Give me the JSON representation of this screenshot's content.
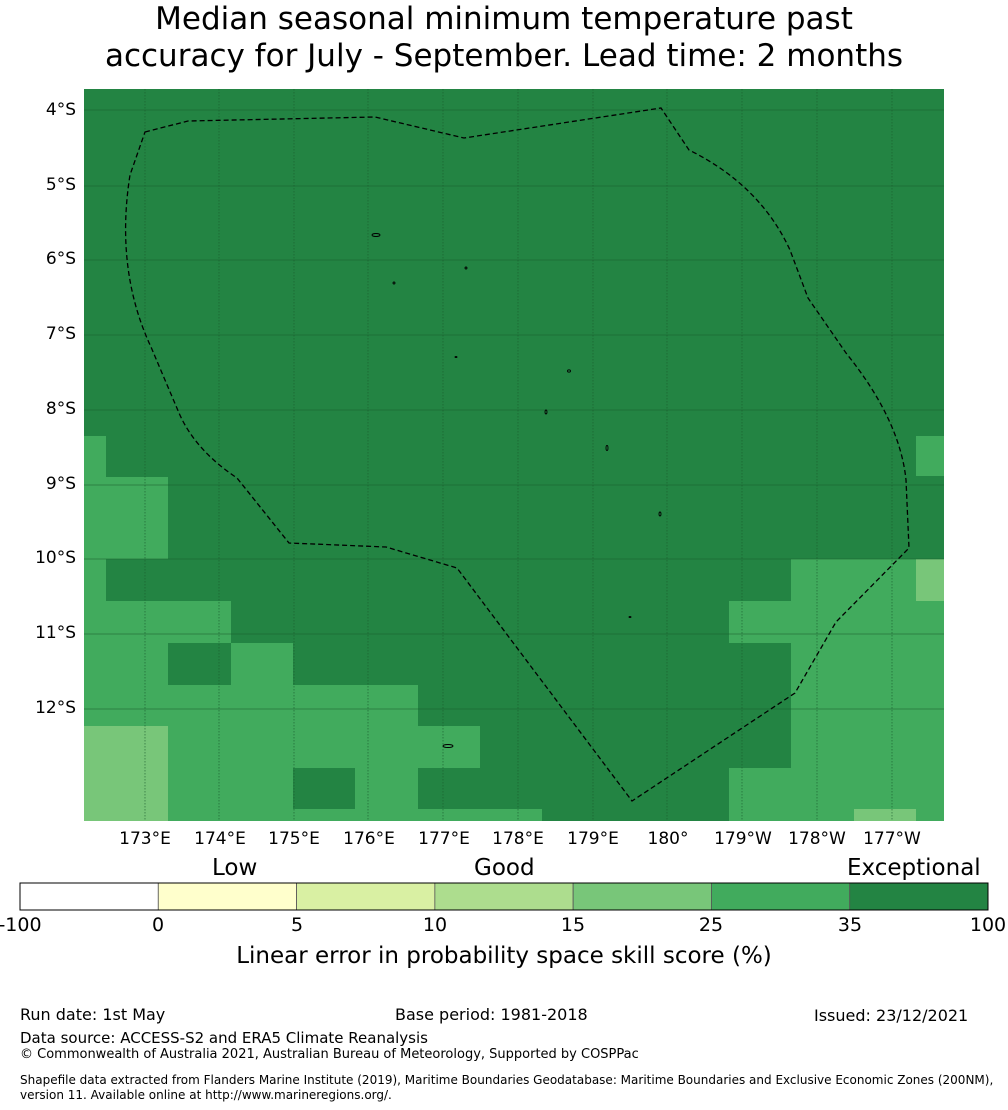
{
  "title": {
    "line1": "Median seasonal minimum temperature past",
    "line2": "accuracy for July - September. Lead time: 2 months"
  },
  "map": {
    "lat_labels": [
      "4°S",
      "5°S",
      "6°S",
      "7°S",
      "8°S",
      "9°S",
      "10°S",
      "11°S",
      "12°S"
    ],
    "lon_labels": [
      "173°E",
      "174°E",
      "175°E",
      "176°E",
      "177°E",
      "178°E",
      "179°E",
      "180°",
      "179°W",
      "178°W",
      "177°W"
    ],
    "extent": {
      "lon_min": 172.2,
      "lon_max": 183.7,
      "lat_min": -13.2,
      "lat_max": -3.75
    },
    "boundary_line_style": "dashed",
    "grid": true,
    "colors": {
      "exceptional": "#238443",
      "band_25_35": "#41ab5d",
      "band_15_25": "#78c679"
    }
  },
  "colorbar": {
    "categories": [
      "Low",
      "Good",
      "Exceptional"
    ],
    "ticks": [
      "-100",
      "0",
      "5",
      "10",
      "15",
      "25",
      "35",
      "100"
    ],
    "colors": [
      "#ffffff",
      "#ffffcc",
      "#d9f0a3",
      "#addd8e",
      "#78c679",
      "#41ab5d",
      "#238443"
    ],
    "label": "Linear error in probability space skill score (%)"
  },
  "footer": {
    "run_date": "Run date: 1st May",
    "base_period": "Base period: 1981-2018",
    "issued": "Issued: 23/12/2021",
    "data_source": "Data source: ACCESS-S2 and ERA5 Climate Reanalysis",
    "copyright": "© Commonwealth of Australia 2021, Australian Bureau of Meteorology, Supported by COSPPac",
    "shapefile_line1": "Shapefile data extracted from Flanders Marine Institute (2019), Maritime Boundaries Geodatabase: Maritime Boundaries and Exclusive Economic Zones (200NM),",
    "shapefile_line2": "version 11. Available online at http://www.marineregions.org/."
  }
}
